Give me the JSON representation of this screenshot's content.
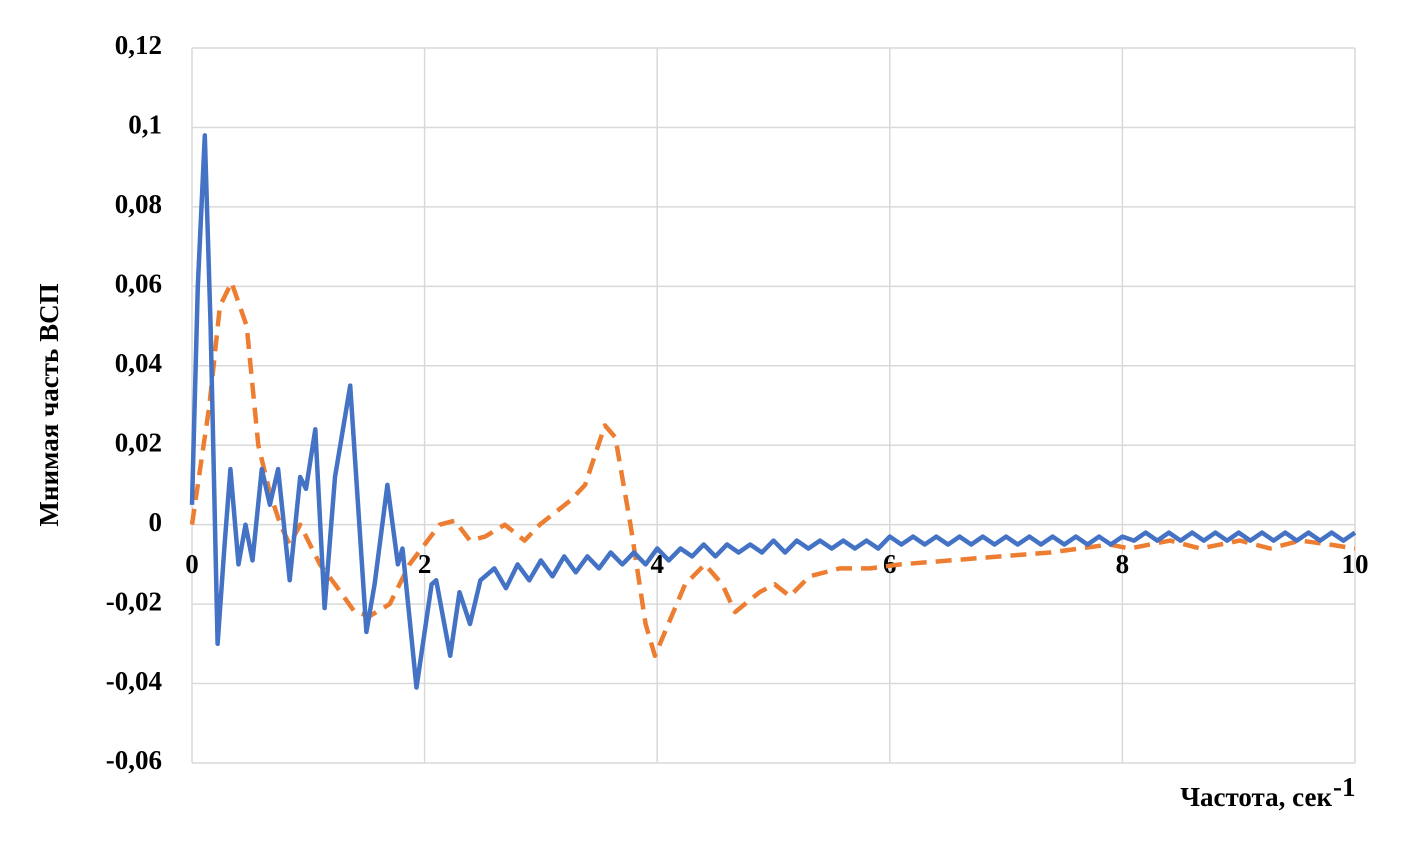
{
  "chart_data": {
    "type": "line",
    "ylabel": "Мнимая часть ВСП",
    "xlabel": "Частота, сек",
    "xlabel_superscript": "-1",
    "xlim": [
      0,
      10
    ],
    "xticks": [
      0,
      2,
      4,
      6,
      8,
      10
    ],
    "ylim": [
      -0.06,
      0.12
    ],
    "yticks": [
      {
        "value": -0.06,
        "label": "-0,06"
      },
      {
        "value": -0.04,
        "label": "-0,04"
      },
      {
        "value": -0.02,
        "label": "-0,02"
      },
      0,
      {
        "value": 0.02,
        "label": "0,02"
      },
      {
        "value": 0.04,
        "label": "0,04"
      },
      {
        "value": 0.06,
        "label": "0,06"
      },
      {
        "value": 0.08,
        "label": "0,08"
      },
      {
        "value": 0.1,
        "label": "0,1"
      },
      {
        "value": 0.12,
        "label": "0,12"
      }
    ],
    "grid": true,
    "series": [
      {
        "color": "#4472c4",
        "dashed": false,
        "x": [
          0,
          0.05,
          0.11,
          0.16,
          0.22,
          0.28,
          0.33,
          0.4,
          0.46,
          0.52,
          0.6,
          0.67,
          0.74,
          0.84,
          0.93,
          0.98,
          1.06,
          1.14,
          1.23,
          1.36,
          1.5,
          1.57,
          1.68,
          1.77,
          1.81,
          1.93,
          2.06,
          2.1,
          2.22,
          2.3,
          2.39,
          2.48,
          2.6,
          2.7,
          2.8,
          2.9,
          3.0,
          3.1,
          3.2,
          3.3,
          3.4,
          3.5,
          3.6,
          3.7,
          3.8,
          3.9,
          4.0,
          4.1,
          4.2,
          4.3,
          4.4,
          4.5,
          4.6,
          4.7,
          4.8,
          4.9,
          5.0,
          5.1,
          5.2,
          5.3,
          5.4,
          5.5,
          5.6,
          5.7,
          5.8,
          5.9,
          6.0,
          6.1,
          6.2,
          6.3,
          6.4,
          6.5,
          6.6,
          6.7,
          6.8,
          6.9,
          7.0,
          7.1,
          7.2,
          7.3,
          7.4,
          7.5,
          7.6,
          7.7,
          7.8,
          7.9,
          8.0,
          8.1,
          8.2,
          8.3,
          8.4,
          8.5,
          8.6,
          8.7,
          8.8,
          8.9,
          9.0,
          9.1,
          9.2,
          9.3,
          9.4,
          9.5,
          9.6,
          9.7,
          9.8,
          9.9,
          10.0
        ],
        "values": [
          0.005,
          0.06,
          0.098,
          0.05,
          -0.03,
          -0.005,
          0.014,
          -0.01,
          0.0,
          -0.009,
          0.014,
          0.005,
          0.014,
          -0.014,
          0.012,
          0.009,
          0.024,
          -0.021,
          0.012,
          0.035,
          -0.027,
          -0.015,
          0.01,
          -0.01,
          -0.006,
          -0.041,
          -0.015,
          -0.014,
          -0.033,
          -0.017,
          -0.025,
          -0.014,
          -0.011,
          -0.016,
          -0.01,
          -0.014,
          -0.009,
          -0.013,
          -0.008,
          -0.012,
          -0.008,
          -0.011,
          -0.007,
          -0.01,
          -0.007,
          -0.01,
          -0.006,
          -0.009,
          -0.006,
          -0.008,
          -0.005,
          -0.008,
          -0.005,
          -0.007,
          -0.005,
          -0.007,
          -0.004,
          -0.007,
          -0.004,
          -0.006,
          -0.004,
          -0.006,
          -0.004,
          -0.006,
          -0.004,
          -0.006,
          -0.003,
          -0.005,
          -0.003,
          -0.005,
          -0.003,
          -0.005,
          -0.003,
          -0.005,
          -0.003,
          -0.005,
          -0.003,
          -0.005,
          -0.003,
          -0.005,
          -0.003,
          -0.005,
          -0.003,
          -0.005,
          -0.003,
          -0.005,
          -0.003,
          -0.004,
          -0.002,
          -0.004,
          -0.002,
          -0.004,
          -0.002,
          -0.004,
          -0.002,
          -0.004,
          -0.002,
          -0.004,
          -0.002,
          -0.004,
          -0.002,
          -0.004,
          -0.002,
          -0.004,
          -0.002,
          -0.004,
          -0.002
        ]
      },
      {
        "color": "#ed7d31",
        "dashed": true,
        "x": [
          0,
          0.05,
          0.15,
          0.24,
          0.34,
          0.47,
          0.57,
          0.67,
          0.76,
          0.84,
          0.93,
          1.1,
          1.23,
          1.4,
          1.53,
          1.7,
          1.87,
          2.13,
          2.26,
          2.39,
          2.52,
          2.69,
          2.86,
          2.99,
          3.25,
          3.38,
          3.55,
          3.64,
          3.77,
          3.9,
          3.98,
          4.24,
          4.41,
          4.56,
          4.67,
          4.88,
          5.01,
          5.14,
          5.31,
          5.57,
          5.83,
          6.09,
          6.52,
          6.95,
          7.38,
          7.89,
          8.06,
          8.41,
          8.67,
          9.01,
          9.27,
          9.53,
          9.78,
          10
        ],
        "values": [
          0.0,
          0.01,
          0.03,
          0.055,
          0.061,
          0.05,
          0.02,
          0.008,
          0.0,
          -0.005,
          0.0,
          -0.01,
          -0.015,
          -0.022,
          -0.023,
          -0.02,
          -0.01,
          0.0,
          0.001,
          -0.004,
          -0.003,
          0.0,
          -0.004,
          0.0,
          0.006,
          0.01,
          0.025,
          0.022,
          0.0,
          -0.025,
          -0.033,
          -0.015,
          -0.01,
          -0.015,
          -0.022,
          -0.017,
          -0.015,
          -0.018,
          -0.013,
          -0.011,
          -0.011,
          -0.01,
          -0.009,
          -0.008,
          -0.007,
          -0.005,
          -0.006,
          -0.004,
          -0.006,
          -0.004,
          -0.006,
          -0.004,
          -0.005,
          -0.006
        ]
      }
    ]
  }
}
